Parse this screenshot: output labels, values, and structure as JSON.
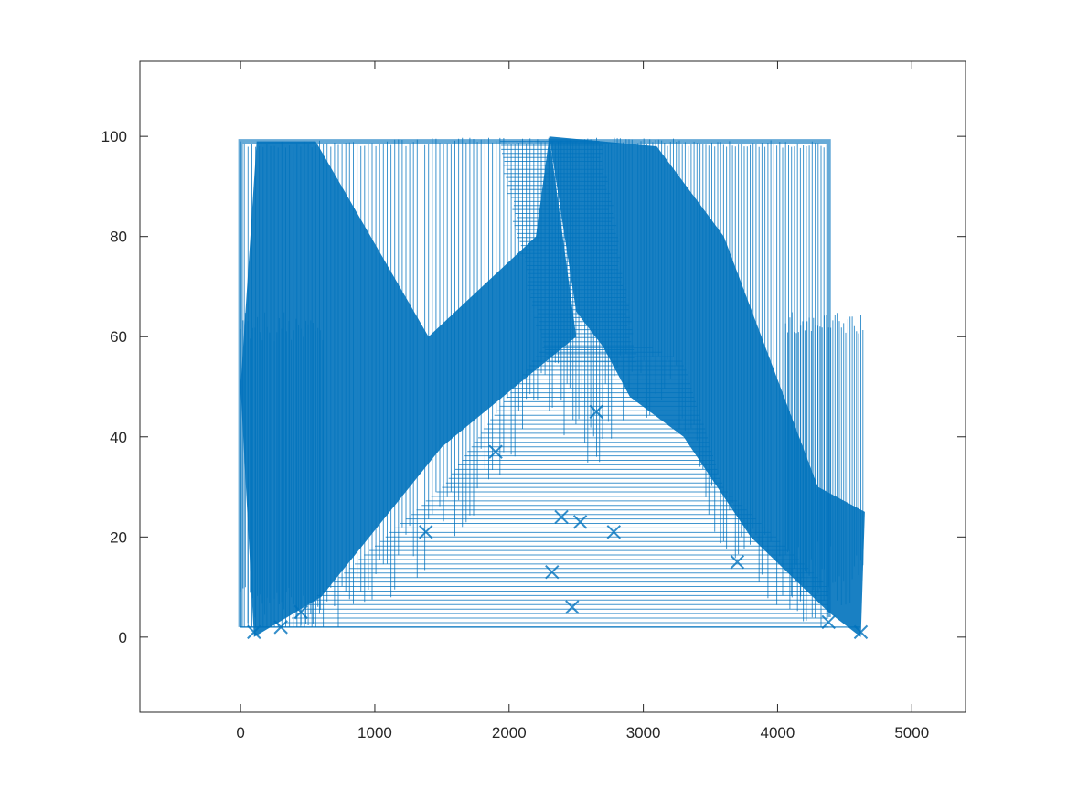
{
  "chart_data": {
    "type": "line",
    "title": "",
    "xlabel": "",
    "ylabel": "",
    "xlim": [
      -750,
      5400
    ],
    "ylim": [
      -15,
      115
    ],
    "x_ticks": [
      0,
      1000,
      2000,
      3000,
      4000,
      5000
    ],
    "x_tick_labels": [
      "0",
      "1000",
      "2000",
      "3000",
      "4000",
      "5000"
    ],
    "y_ticks": [
      0,
      20,
      40,
      60,
      80,
      100
    ],
    "y_tick_labels": [
      "0",
      "20",
      "40",
      "60",
      "80",
      "100"
    ],
    "grid": false,
    "legend": "none",
    "series": [
      {
        "color": "#0072BD",
        "marker": "x",
        "segments": [
          {
            "type": "band",
            "y_range": [
              2,
              100
            ],
            "x_left": [
              0,
              140
            ],
            "x_right": [
              4380,
              4650
            ],
            "note_count": 120
          },
          {
            "type": "peak",
            "x": 2300,
            "y": 100
          },
          {
            "type": "trough",
            "x": 50,
            "y": 2
          },
          {
            "type": "trough",
            "x": 4630,
            "y": 2
          }
        ],
        "envelope_top": [
          [
            0,
            99
          ],
          [
            2300,
            100
          ],
          [
            4380,
            99
          ]
        ],
        "envelope_left_inner": [
          [
            300,
            2
          ],
          [
            1500,
            30
          ],
          [
            2300,
            60
          ],
          [
            2600,
            45
          ],
          [
            2900,
            60
          ]
        ],
        "envelope_right_inner": [
          [
            2900,
            60
          ],
          [
            3300,
            55
          ],
          [
            3600,
            30
          ],
          [
            4380,
            10
          ]
        ],
        "side_band_right": [
          [
            4060,
            65
          ],
          [
            4650,
            65
          ]
        ],
        "side_band_left": [
          [
            0,
            65
          ],
          [
            600,
            65
          ]
        ]
      }
    ]
  }
}
